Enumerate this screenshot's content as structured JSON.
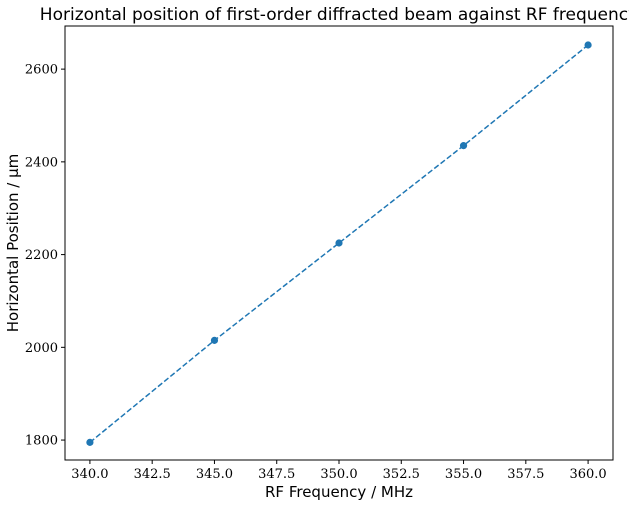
{
  "chart_data": {
    "type": "line",
    "title": "Horizontal position of first-order diffracted beam against RF frequency",
    "xlabel": "RF Frequency / MHz",
    "ylabel": "Horizontal Position / μm",
    "xlim": [
      339.0,
      361.0
    ],
    "ylim": [
      1757,
      2693
    ],
    "x_ticks": [
      340.0,
      342.5,
      345.0,
      347.5,
      350.0,
      352.5,
      355.0,
      357.5,
      360.0
    ],
    "x_tick_labels": [
      "340.0",
      "342.5",
      "345.0",
      "347.5",
      "350.0",
      "352.5",
      "355.0",
      "357.5",
      "360.0"
    ],
    "y_ticks": [
      1800,
      2000,
      2200,
      2400,
      2600
    ],
    "y_tick_labels": [
      "1800",
      "2000",
      "2200",
      "2400",
      "2600"
    ],
    "grid": false,
    "series": [
      {
        "color": "#1f77b4",
        "line_style": "dashed",
        "marker": "circle",
        "x": [
          340,
          345,
          350,
          355,
          360
        ],
        "y": [
          1795,
          2015,
          2225,
          2435,
          2652
        ]
      }
    ]
  }
}
